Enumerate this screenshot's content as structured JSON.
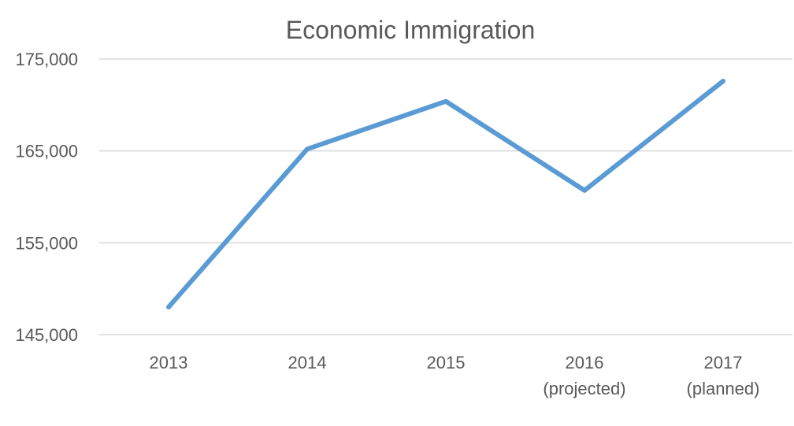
{
  "chart_data": {
    "type": "line",
    "title": "Economic Immigration",
    "categories": [
      [
        "2013"
      ],
      [
        "2014"
      ],
      [
        "2015"
      ],
      [
        "2016",
        "(projected)"
      ],
      [
        "2017",
        "(planned)"
      ]
    ],
    "series": [
      {
        "values": [
          148000,
          165200,
          170400,
          160700,
          172600
        ],
        "color": "#5b9bd5"
      }
    ],
    "ylim": [
      145000,
      175000
    ],
    "yticks": [
      145000,
      155000,
      165000,
      175000
    ],
    "ytick_labels": [
      "145,000",
      "155,000",
      "165,000",
      "175,000"
    ],
    "grid": true,
    "legend": "none"
  }
}
